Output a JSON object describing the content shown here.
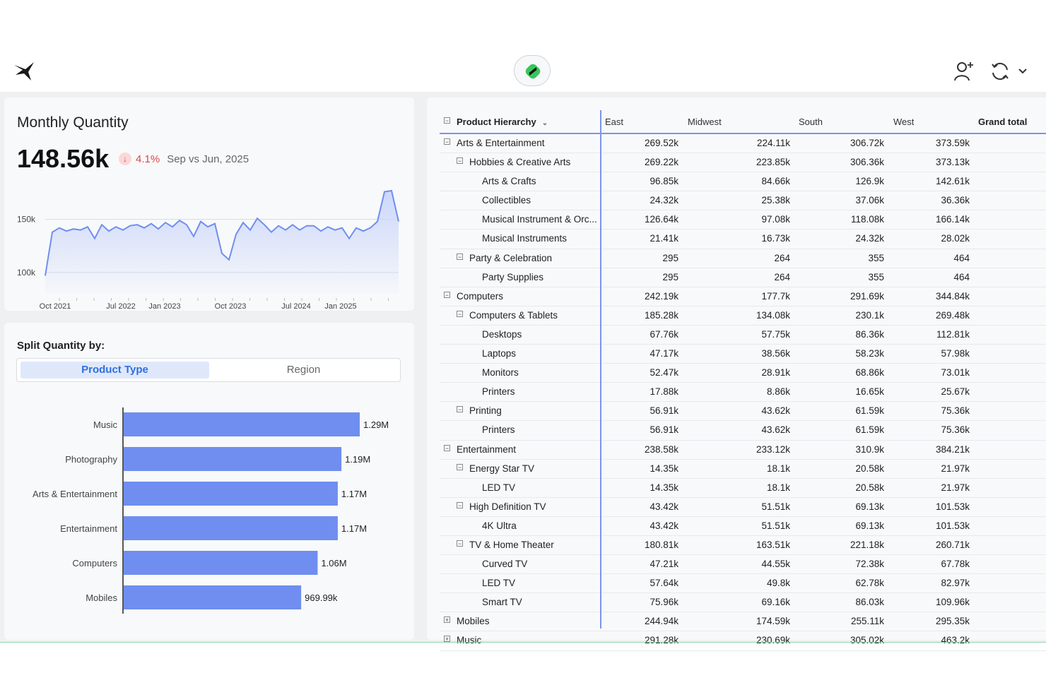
{
  "header": {
    "logo_icon": "bird-logo-icon",
    "center_icon": "green-app-badge-icon",
    "actions": [
      "add-user-icon",
      "refresh-icon",
      "chevron-down-icon"
    ]
  },
  "kpi": {
    "title": "Monthly Quantity",
    "value": "148.56k",
    "delta_pct": "4.1%",
    "delta_direction": "down",
    "comparison": "Sep vs Jun, 2025",
    "colors": {
      "line": "#6f8ef0",
      "fill": "#c9d5fb",
      "negative": "#d94a4a"
    }
  },
  "chart_data": [
    {
      "type": "area",
      "title": "Monthly Quantity",
      "y_ticks": [
        "150k",
        "100k"
      ],
      "x_ticks": [
        "Oct 2021",
        "Jul 2022",
        "Jan 2023",
        "Oct 2023",
        "Jul 2024",
        "Jan 2025"
      ],
      "ylim": [
        80000,
        185000
      ],
      "grid": true,
      "values": [
        97000,
        138000,
        142000,
        139000,
        141000,
        140000,
        143000,
        132000,
        145000,
        139000,
        143000,
        140000,
        144000,
        145000,
        142000,
        146000,
        141000,
        147000,
        143000,
        149000,
        145000,
        134000,
        148000,
        143000,
        146000,
        118000,
        112000,
        136000,
        147000,
        140000,
        151000,
        145000,
        138000,
        144000,
        140000,
        145000,
        140000,
        144000,
        144000,
        139000,
        143000,
        140000,
        142000,
        132000,
        142000,
        139000,
        142000,
        148000,
        176000,
        177000,
        148000
      ]
    },
    {
      "type": "bar",
      "orientation": "horizontal",
      "categories": [
        "Music",
        "Photography",
        "Arts & Entertainment",
        "Entertainment",
        "Computers",
        "Mobiles"
      ],
      "values": [
        1290000,
        1190000,
        1170000,
        1170000,
        1060000,
        969990
      ],
      "labels": [
        "1.29M",
        "1.19M",
        "1.17M",
        "1.17M",
        "1.06M",
        "969.99k"
      ],
      "color": "#6f8ef0"
    }
  ],
  "split": {
    "title": "Split Quantity by:",
    "tabs": [
      "Product Type",
      "Region"
    ],
    "active_tab": "Product Type"
  },
  "table": {
    "header_first": "Product Hierarchy",
    "columns": [
      "East",
      "Midwest",
      "South",
      "West",
      "Grand total"
    ],
    "rows": [
      {
        "level": 0,
        "toggle": "−",
        "name": "Arts & Entertainment",
        "values": [
          "269.52k",
          "224.11k",
          "306.72k",
          "373.59k"
        ]
      },
      {
        "level": 1,
        "toggle": "−",
        "name": "Hobbies & Creative Arts",
        "values": [
          "269.22k",
          "223.85k",
          "306.36k",
          "373.13k"
        ]
      },
      {
        "level": 2,
        "toggle": "",
        "name": "Arts & Crafts",
        "values": [
          "96.85k",
          "84.66k",
          "126.9k",
          "142.61k"
        ]
      },
      {
        "level": 2,
        "toggle": "",
        "name": "Collectibles",
        "values": [
          "24.32k",
          "25.38k",
          "37.06k",
          "36.36k"
        ]
      },
      {
        "level": 2,
        "toggle": "",
        "name": "Musical Instrument & Orc...",
        "values": [
          "126.64k",
          "97.08k",
          "118.08k",
          "166.14k"
        ]
      },
      {
        "level": 2,
        "toggle": "",
        "name": "Musical Instruments",
        "values": [
          "21.41k",
          "16.73k",
          "24.32k",
          "28.02k"
        ]
      },
      {
        "level": 1,
        "toggle": "−",
        "name": "Party & Celebration",
        "values": [
          "295",
          "264",
          "355",
          "464"
        ]
      },
      {
        "level": 2,
        "toggle": "",
        "name": "Party Supplies",
        "values": [
          "295",
          "264",
          "355",
          "464"
        ]
      },
      {
        "level": 0,
        "toggle": "−",
        "name": "Computers",
        "values": [
          "242.19k",
          "177.7k",
          "291.69k",
          "344.84k"
        ]
      },
      {
        "level": 1,
        "toggle": "−",
        "name": "Computers & Tablets",
        "values": [
          "185.28k",
          "134.08k",
          "230.1k",
          "269.48k"
        ]
      },
      {
        "level": 2,
        "toggle": "",
        "name": "Desktops",
        "values": [
          "67.76k",
          "57.75k",
          "86.36k",
          "112.81k"
        ]
      },
      {
        "level": 2,
        "toggle": "",
        "name": "Laptops",
        "values": [
          "47.17k",
          "38.56k",
          "58.23k",
          "57.98k"
        ]
      },
      {
        "level": 2,
        "toggle": "",
        "name": "Monitors",
        "values": [
          "52.47k",
          "28.91k",
          "68.86k",
          "73.01k"
        ]
      },
      {
        "level": 2,
        "toggle": "",
        "name": "Printers",
        "values": [
          "17.88k",
          "8.86k",
          "16.65k",
          "25.67k"
        ]
      },
      {
        "level": 1,
        "toggle": "−",
        "name": "Printing",
        "values": [
          "56.91k",
          "43.62k",
          "61.59k",
          "75.36k"
        ]
      },
      {
        "level": 2,
        "toggle": "",
        "name": "Printers",
        "values": [
          "56.91k",
          "43.62k",
          "61.59k",
          "75.36k"
        ]
      },
      {
        "level": 0,
        "toggle": "−",
        "name": "Entertainment",
        "values": [
          "238.58k",
          "233.12k",
          "310.9k",
          "384.21k"
        ]
      },
      {
        "level": 1,
        "toggle": "−",
        "name": "Energy Star TV",
        "values": [
          "14.35k",
          "18.1k",
          "20.58k",
          "21.97k"
        ]
      },
      {
        "level": 2,
        "toggle": "",
        "name": "LED TV",
        "values": [
          "14.35k",
          "18.1k",
          "20.58k",
          "21.97k"
        ]
      },
      {
        "level": 1,
        "toggle": "−",
        "name": "High Definition TV",
        "values": [
          "43.42k",
          "51.51k",
          "69.13k",
          "101.53k"
        ]
      },
      {
        "level": 2,
        "toggle": "",
        "name": "4K Ultra",
        "values": [
          "43.42k",
          "51.51k",
          "69.13k",
          "101.53k"
        ]
      },
      {
        "level": 1,
        "toggle": "−",
        "name": "TV & Home Theater",
        "values": [
          "180.81k",
          "163.51k",
          "221.18k",
          "260.71k"
        ]
      },
      {
        "level": 2,
        "toggle": "",
        "name": "Curved TV",
        "values": [
          "47.21k",
          "44.55k",
          "72.38k",
          "67.78k"
        ]
      },
      {
        "level": 2,
        "toggle": "",
        "name": "LED TV",
        "values": [
          "57.64k",
          "49.8k",
          "62.78k",
          "82.97k"
        ]
      },
      {
        "level": 2,
        "toggle": "",
        "name": "Smart TV",
        "values": [
          "75.96k",
          "69.16k",
          "86.03k",
          "109.96k"
        ]
      },
      {
        "level": 0,
        "toggle": "+",
        "name": "Mobiles",
        "values": [
          "244.94k",
          "174.59k",
          "255.11k",
          "295.35k"
        ]
      },
      {
        "level": 0,
        "toggle": "+",
        "name": "Music",
        "values": [
          "291.28k",
          "230.69k",
          "305.02k",
          "463.2k"
        ]
      }
    ]
  }
}
